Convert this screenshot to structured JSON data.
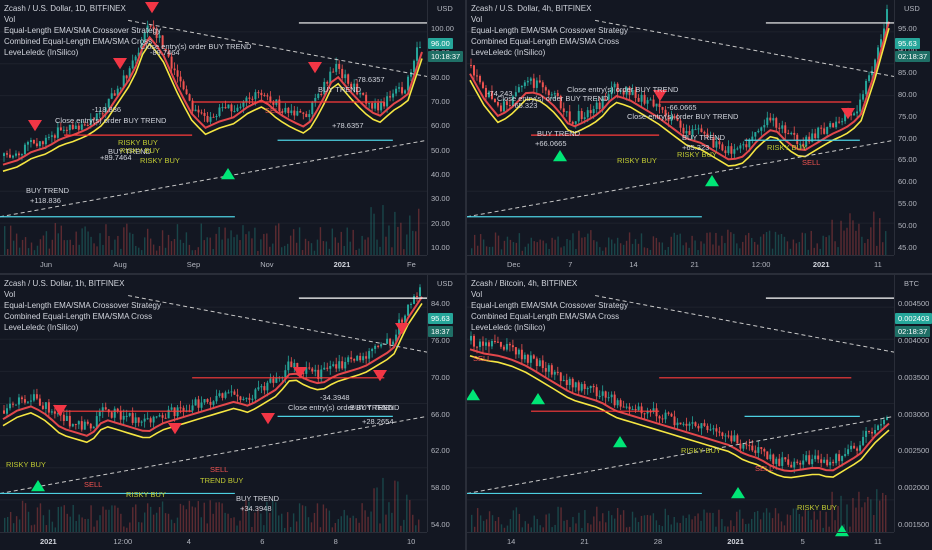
{
  "panes": [
    {
      "title": "Zcash / U.S. Dollar, 1D, BITFINEX",
      "vol": "Vol",
      "studies": [
        "Equal-Length EMA/SMA Crossover Strategy",
        "Combined Equal-Length EMA/SMA Cross",
        "LeveLeledc (InSilico)"
      ],
      "currency": "USD",
      "y_ticks": [
        "100.00",
        "90.00",
        "80.00",
        "70.00",
        "60.00",
        "50.00",
        "40.00",
        "30.00",
        "20.00",
        "10.00"
      ],
      "x_ticks": [
        "Jun",
        "Aug",
        "Sep",
        "Nov",
        "2021",
        "Fe"
      ],
      "price_badge": "96.00",
      "time_badge": "10:18:37",
      "annotations": [
        "-118.836",
        "Close entry(s) order BUY TREND",
        "-89.7464",
        "Close entry(s) order BUY TREND",
        "-78.6357",
        "BUY TREND",
        "+78.6357",
        "BUY TREND",
        "+89.7464",
        "BUY TREND",
        "+118.836",
        "RISKY BUY",
        "RISKY BUY",
        "RISKY BUY",
        "SELL"
      ]
    },
    {
      "title": "Zcash / U.S. Dollar, 4h, BITFINEX",
      "vol": "Vol",
      "studies": [
        "Equal-Length EMA/SMA Crossover Strategy",
        "Combined Equal-Length EMA/SMA Cross",
        "LeveLeledc (InSilico)"
      ],
      "currency": "USD",
      "y_ticks": [
        "95.00",
        "90.00",
        "85.00",
        "80.00",
        "75.00",
        "70.00",
        "65.00",
        "60.00",
        "55.00",
        "50.00",
        "45.00"
      ],
      "x_ticks": [
        "Dec",
        "7",
        "14",
        "21",
        "12:00",
        "2021",
        "11"
      ],
      "price_badge": "95.63",
      "time_badge": "02:18:37",
      "annotations": [
        "-74.243",
        "Close entry(s) order BUY TREND",
        "-66.0665",
        "Close entry(s) order BUY TREND",
        "-65.323",
        "Close entry(s) order BUY TREND",
        "BUY TREND",
        "+66.0665",
        "BUY TREND",
        "+65.323",
        "RISKY BUY",
        "RISKY BUY",
        "RISKY BUY",
        "SELL"
      ]
    },
    {
      "title": "Zcash / U.S. Dollar, 1h, BITFINEX",
      "vol": "Vol",
      "studies": [
        "Equal-Length EMA/SMA Crossover Strategy",
        "Combined Equal-Length EMA/SMA Cross",
        "LeveLeledc (InSilico)"
      ],
      "currency": "USD",
      "y_ticks": [
        "84.00",
        "76.00",
        "70.00",
        "66.00",
        "62.00",
        "58.00",
        "54.00"
      ],
      "x_ticks": [
        "2021",
        "12:00",
        "4",
        "6",
        "8",
        "10"
      ],
      "price_badge": "95.63",
      "time_badge": "18:37",
      "annotations": [
        "-34.3948",
        "Close entry(s) order BUY TREND",
        "BUY TREND",
        "+28.2654",
        "BUY TREND",
        "+34.3948",
        "RISKY BUY",
        "RISKY BUY",
        "TREND BUY",
        "SELL",
        "SELL"
      ]
    },
    {
      "title": "Zcash / Bitcoin, 4h, BITFINEX",
      "vol": "Vol",
      "studies": [
        "Equal-Length EMA/SMA Crossover Strategy",
        "Combined Equal-Length EMA/SMA Cross",
        "LeveLeledc (InSilico)"
      ],
      "currency": "BTC",
      "y_ticks": [
        "0.004500",
        "0.004000",
        "0.003500",
        "0.003000",
        "0.002500",
        "0.002000",
        "0.001500"
      ],
      "x_ticks": [
        "14",
        "21",
        "28",
        "2021",
        "5",
        "11"
      ],
      "price_badge": "0.002403",
      "time_badge": "02:18:37",
      "annotations": [
        "SELL",
        "RISKY BUY",
        "SELL",
        "RISKY BUY"
      ]
    }
  ],
  "colors": {
    "bg": "#131722",
    "up": "#26a69a",
    "down": "#ef5350",
    "sell_marker": "#f23645",
    "buy_marker": "#00e676",
    "ema_red": "#e2474b",
    "ema_yellow": "#f5e642",
    "ema_green": "#8bc34a",
    "level_cyan": "#4dd0e1",
    "level_red": "#ff3b3b",
    "dashed": "#c8c8c8"
  }
}
